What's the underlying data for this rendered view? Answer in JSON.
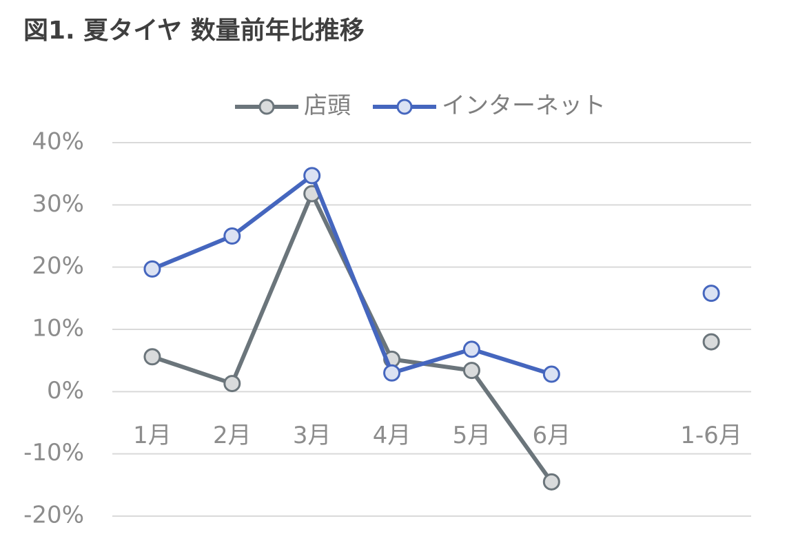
{
  "chart_data": {
    "type": "line",
    "title": "図1. 夏タイヤ 数量前年比推移",
    "categories": [
      "1月",
      "2月",
      "3月",
      "4月",
      "5月",
      "6月",
      null,
      "1-6月"
    ],
    "series": [
      {
        "name": "店頭",
        "color": "#6b757b",
        "marker_fill": "#d9dbdc",
        "values": [
          5.6,
          1.3,
          31.8,
          5.2,
          3.4,
          -14.5,
          null,
          8.0
        ]
      },
      {
        "name": "インターネット",
        "color": "#4566be",
        "marker_fill": "#dbe2f3",
        "values": [
          19.7,
          25.0,
          34.7,
          3.0,
          6.8,
          2.8,
          null,
          15.8
        ]
      }
    ],
    "ylim": [
      -20,
      40
    ],
    "yticks": [
      {
        "value": -20,
        "label": "-20%"
      },
      {
        "value": -10,
        "label": "-10%"
      },
      {
        "value": 0,
        "label": "0%"
      },
      {
        "value": 10,
        "label": "10%"
      },
      {
        "value": 20,
        "label": "20%"
      },
      {
        "value": 30,
        "label": "30%"
      },
      {
        "value": 40,
        "label": "40%"
      }
    ],
    "grid": true,
    "legend": "top"
  }
}
